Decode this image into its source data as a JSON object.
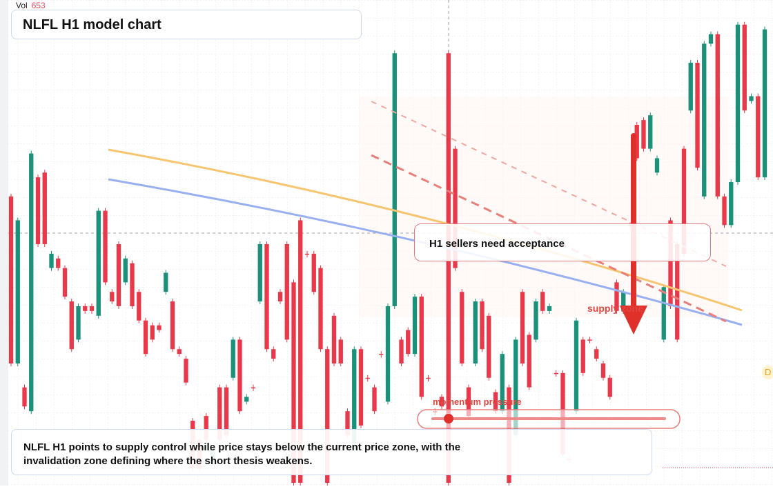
{
  "chart_data": {
    "type": "candlestick",
    "title": "NLFL H1 model chart",
    "volume_label": "Vol",
    "volume_value": "653",
    "annotation_text": "H1 sellers need acceptance",
    "supply_label": "supply zone",
    "momentum_label": "momentum pressure",
    "summary": "NLFL H1 points to supply control while price stays below the current price zone, with the invalidation zone defining where the short thesis weakens.",
    "edge_tag": "D",
    "colors": {
      "up": "#1a9178",
      "down": "#e8394b",
      "ema_fast": "#f7c56f",
      "ema_slow": "#98b0f0",
      "arrow": "#e0302a"
    },
    "candles": [
      {
        "o": 40,
        "c": 75
      },
      {
        "o": 75,
        "c": 45
      },
      {
        "o": 80,
        "c": 84
      },
      {
        "o": 85,
        "c": 31
      },
      {
        "o": 36,
        "c": 50
      },
      {
        "o": 35,
        "c": 50
      },
      {
        "o": 55,
        "c": 52
      },
      {
        "o": 53,
        "c": 55
      },
      {
        "o": 55,
        "c": 61
      },
      {
        "o": 62,
        "c": 72
      },
      {
        "o": 70,
        "c": 63
      },
      {
        "o": 63,
        "c": 64
      },
      {
        "o": 63,
        "c": 64
      },
      {
        "o": 65,
        "c": 43
      },
      {
        "o": 43,
        "c": 58
      },
      {
        "o": 60,
        "c": 62
      },
      {
        "o": 50,
        "c": 63
      },
      {
        "o": 58,
        "c": 53
      },
      {
        "o": 54,
        "c": 63
      },
      {
        "o": 60,
        "c": 66
      },
      {
        "o": 66,
        "c": 73
      },
      {
        "o": 67,
        "c": 70
      },
      {
        "o": 67,
        "c": 68
      },
      {
        "o": 60,
        "c": 56
      },
      {
        "o": 62,
        "c": 72
      },
      {
        "o": 72,
        "c": 73
      },
      {
        "o": 74,
        "c": 79
      },
      {
        "o": 87,
        "c": 97
      },
      {
        "o": 91,
        "c": 97
      },
      {
        "o": 86,
        "c": 91
      },
      {
        "o": 96,
        "c": 93
      },
      {
        "o": 80,
        "c": 91
      },
      {
        "o": 80,
        "c": 90
      },
      {
        "o": 78,
        "c": 70
      },
      {
        "o": 70,
        "c": 85
      },
      {
        "o": 83,
        "c": 82
      },
      {
        "o": 80,
        "c": 80
      },
      {
        "o": 62,
        "c": 50
      },
      {
        "o": 50,
        "c": 72
      },
      {
        "o": 72,
        "c": 74
      },
      {
        "o": 60,
        "c": 62
      },
      {
        "o": 50,
        "c": 70
      },
      {
        "o": 58,
        "c": 100
      },
      {
        "o": 45,
        "c": 100
      },
      {
        "o": 52,
        "c": 52
      },
      {
        "o": 52,
        "c": 60
      },
      {
        "o": 55,
        "c": 72
      },
      {
        "o": 72,
        "c": 100
      },
      {
        "o": 65,
        "c": 75
      },
      {
        "o": 70,
        "c": 75
      },
      {
        "o": 85,
        "c": 90
      },
      {
        "o": 93,
        "c": 72
      },
      {
        "o": 72,
        "c": 88
      },
      {
        "o": 78,
        "c": 78
      },
      {
        "o": 80,
        "c": 85
      },
      {
        "o": 73,
        "c": 73
      },
      {
        "o": 83,
        "c": 63
      },
      {
        "o": 63,
        "c": 10
      },
      {
        "o": 70,
        "c": 75
      },
      {
        "o": 68,
        "c": 73
      },
      {
        "o": 73,
        "c": 61
      },
      {
        "o": 61,
        "c": 82
      },
      {
        "o": 78,
        "c": 78
      },
      {
        "o": 85,
        "c": 85
      },
      {
        "o": 82,
        "c": 84
      },
      {
        "o": 10,
        "c": 100
      },
      {
        "o": 30,
        "c": 55
      },
      {
        "o": 60,
        "c": 75
      },
      {
        "o": 80,
        "c": 86
      },
      {
        "o": 75,
        "c": 62
      },
      {
        "o": 62,
        "c": 72
      },
      {
        "o": 65,
        "c": 78
      },
      {
        "o": 81,
        "c": 85
      },
      {
        "o": 85,
        "c": 73
      },
      {
        "o": 80,
        "c": 100
      },
      {
        "o": 90,
        "c": 70
      },
      {
        "o": 60,
        "c": 75
      },
      {
        "o": 69,
        "c": 80
      },
      {
        "o": 70,
        "c": 62
      },
      {
        "o": 60,
        "c": 64
      },
      {
        "o": 64,
        "c": 63
      },
      {
        "o": 77,
        "c": 77
      },
      {
        "o": 77,
        "c": 94
      },
      {
        "o": 95,
        "c": 95
      },
      {
        "o": 85,
        "c": 66
      },
      {
        "o": 70,
        "c": 77
      },
      {
        "o": 70,
        "c": 70
      },
      {
        "o": 72,
        "c": 74
      },
      {
        "o": 75,
        "c": 78
      },
      {
        "o": 78,
        "c": 82
      },
      {
        "o": 58,
        "c": 64
      },
      {
        "o": 64,
        "c": 60
      },
      {
        "o": 46,
        "c": 46
      },
      {
        "o": 25,
        "c": 32
      },
      {
        "o": 24,
        "c": 30
      },
      {
        "o": 30,
        "c": 23
      },
      {
        "o": 35,
        "c": 32
      },
      {
        "o": 70,
        "c": 59
      },
      {
        "o": 45,
        "c": 63
      },
      {
        "o": 50,
        "c": 70
      },
      {
        "o": 30,
        "c": 52
      },
      {
        "o": 22,
        "c": 12
      },
      {
        "o": 12,
        "c": 34
      },
      {
        "o": 40,
        "c": 8
      },
      {
        "o": 8,
        "c": 6
      },
      {
        "o": 6,
        "c": 40
      },
      {
        "o": 40,
        "c": 46
      },
      {
        "o": 46,
        "c": 37
      },
      {
        "o": 37,
        "c": 4
      },
      {
        "o": 4,
        "c": 22
      },
      {
        "o": 20,
        "c": 19
      },
      {
        "o": 19,
        "c": 36
      },
      {
        "o": 36,
        "c": 5
      }
    ]
  }
}
